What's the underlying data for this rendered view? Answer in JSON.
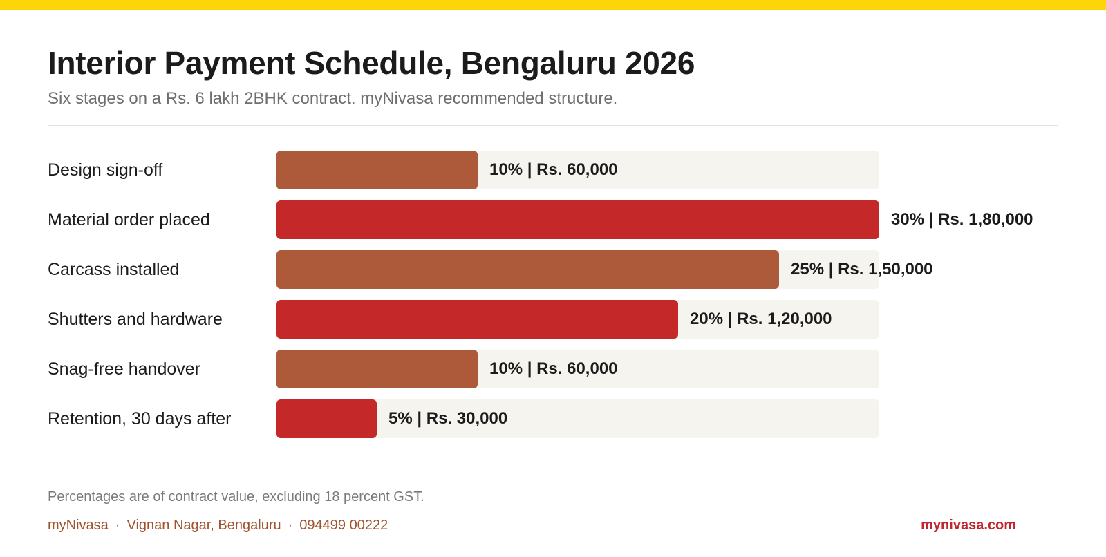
{
  "header": {
    "title": "Interior Payment Schedule, Bengaluru 2026",
    "subtitle": "Six stages on a Rs. 6 lakh 2BHK contract. myNivasa recommended structure."
  },
  "colors": {
    "top_strip": "#FDD60A",
    "bar_brown": "#AD5A3A",
    "bar_red": "#C42828",
    "track": "#F6F4EE",
    "footer_brand": "#A0522D",
    "footer_url": "#C0262D"
  },
  "chart_data": {
    "type": "bar",
    "orientation": "horizontal",
    "title": "Interior Payment Schedule, Bengaluru 2026",
    "subtitle": "Six stages on a Rs. 6 lakh 2BHK contract. myNivasa recommended structure.",
    "categories": [
      "Design sign-off",
      "Material order placed",
      "Carcass installed",
      "Shutters and hardware",
      "Snag-free handover",
      "Retention, 30 days after"
    ],
    "values": [
      10,
      30,
      25,
      20,
      10,
      5
    ],
    "amounts": [
      60000,
      180000,
      150000,
      120000,
      60000,
      30000
    ],
    "value_labels": [
      "10% | Rs. 60,000",
      "30% | Rs. 1,80,000",
      "25% | Rs. 1,50,000",
      "20% | Rs. 1,20,000",
      "10% | Rs. 60,000",
      "5% | Rs. 30,000"
    ],
    "bar_colors": [
      "#AD5A3A",
      "#C42828",
      "#AD5A3A",
      "#C42828",
      "#AD5A3A",
      "#C42828"
    ],
    "xlim": [
      0,
      30
    ],
    "xlabel": "",
    "ylabel": "",
    "grid": false,
    "legend": "none"
  },
  "footer": {
    "note": "Percentages are of contract value, excluding 18 percent GST.",
    "brand": "myNivasa",
    "separator": "·",
    "location": "Vignan Nagar, Bengaluru",
    "phone": "094499 00222",
    "website": "mynivasa.com"
  }
}
